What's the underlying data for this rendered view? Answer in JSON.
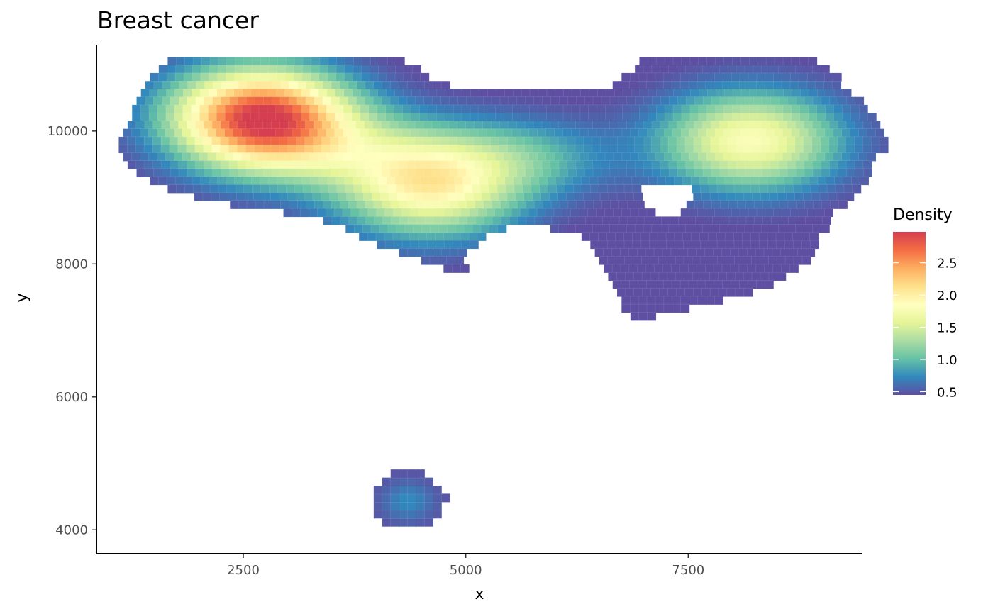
{
  "chart_data": {
    "type": "heatmap",
    "title": "Breast cancer",
    "xlabel": "x",
    "ylabel": "y",
    "xlim": [
      850,
      9450
    ],
    "ylim": [
      3640,
      11300
    ],
    "x_ticks": [
      2500,
      5000,
      7500
    ],
    "x_tick_labels": [
      "2500",
      "5000",
      "7500"
    ],
    "y_ticks": [
      4000,
      6000,
      8000,
      10000
    ],
    "y_tick_labels": [
      "4000",
      "6000",
      "8000",
      "10000"
    ],
    "grid": false,
    "legend": {
      "title": "Density",
      "placement": "right",
      "min": 0.45,
      "max": 2.98,
      "ticks": [
        0.5,
        1.0,
        1.5,
        2.0,
        2.5
      ],
      "tick_labels": [
        "0.5",
        "1.0",
        "1.5",
        "2.0",
        "2.5"
      ],
      "palette": [
        "#5E4FA2",
        "#3288BD",
        "#66C2A5",
        "#ABDDA4",
        "#E6F598",
        "#FFFFBF",
        "#FEE08B",
        "#FDAE61",
        "#F46D43",
        "#D53E4F"
      ]
    },
    "grid_cell": {
      "dx": 95,
      "dy": 122
    },
    "density_peaks": [
      {
        "x": 2700,
        "y": 10200,
        "density": 2.95
      },
      {
        "x": 4600,
        "y": 9150,
        "density": 1.85
      },
      {
        "x": 8200,
        "y": 9850,
        "density": 1.8
      },
      {
        "x": 4350,
        "y": 4450,
        "density": 0.7
      }
    ],
    "shape": {
      "upper_region": {
        "row_spans": [
          {
            "y": 11050,
            "spans": [
              [
                1700,
                4300
              ],
              [
                7000,
                8950
              ]
            ]
          },
          {
            "y": 10930,
            "spans": [
              [
                1600,
                4450
              ],
              [
                6950,
                9100
              ]
            ]
          },
          {
            "y": 10810,
            "spans": [
              [
                1500,
                4550
              ],
              [
                6800,
                9200
              ]
            ]
          },
          {
            "y": 10690,
            "spans": [
              [
                1450,
                4800
              ],
              [
                6700,
                9250
              ]
            ]
          },
          {
            "y": 10570,
            "spans": [
              [
                1400,
                9350
              ]
            ]
          },
          {
            "y": 10450,
            "spans": [
              [
                1350,
                9450
              ]
            ]
          },
          {
            "y": 10330,
            "spans": [
              [
                1300,
                9500
              ]
            ]
          },
          {
            "y": 10210,
            "spans": [
              [
                1300,
                9600
              ]
            ]
          },
          {
            "y": 10090,
            "spans": [
              [
                1250,
                9650
              ]
            ]
          },
          {
            "y": 9970,
            "spans": [
              [
                1200,
                9700
              ]
            ]
          },
          {
            "y": 9850,
            "spans": [
              [
                1150,
                9700
              ]
            ]
          },
          {
            "y": 9730,
            "spans": [
              [
                1150,
                9700
              ]
            ]
          },
          {
            "y": 9610,
            "spans": [
              [
                1200,
                9650
              ]
            ]
          },
          {
            "y": 9490,
            "spans": [
              [
                1250,
                9600
              ]
            ]
          },
          {
            "y": 9370,
            "spans": [
              [
                1350,
                9550
              ]
            ]
          },
          {
            "y": 9250,
            "spans": [
              [
                1500,
                9500
              ]
            ]
          },
          {
            "y": 9130,
            "spans": [
              [
                1700,
                9450
              ]
            ]
          },
          {
            "y": 9010,
            "spans": [
              [
                2000,
                9350
              ]
            ]
          },
          {
            "y": 8890,
            "spans": [
              [
                2400,
                9250
              ]
            ]
          },
          {
            "y": 8770,
            "spans": [
              [
                3000,
                9150
              ]
            ]
          },
          {
            "y": 8650,
            "spans": [
              [
                3450,
                9100
              ]
            ]
          },
          {
            "y": 8530,
            "spans": [
              [
                3700,
                5450
              ],
              [
                6000,
                9050
              ]
            ]
          },
          {
            "y": 8410,
            "spans": [
              [
                3850,
                5250
              ],
              [
                6350,
                9000
              ]
            ]
          },
          {
            "y": 8290,
            "spans": [
              [
                4050,
                5100
              ],
              [
                6450,
                8950
              ]
            ]
          },
          {
            "y": 8170,
            "spans": [
              [
                4300,
                5050
              ],
              [
                6500,
                8900
              ]
            ]
          },
          {
            "y": 8050,
            "spans": [
              [
                4550,
                5000
              ],
              [
                6550,
                8850
              ]
            ]
          },
          {
            "y": 7930,
            "spans": [
              [
                4800,
                5000
              ],
              [
                6600,
                8750
              ]
            ]
          },
          {
            "y": 7810,
            "spans": [
              [
                6650,
                8600
              ]
            ]
          },
          {
            "y": 7690,
            "spans": [
              [
                6700,
                8450
              ]
            ]
          },
          {
            "y": 7570,
            "spans": [
              [
                6750,
                8200
              ]
            ]
          },
          {
            "y": 7450,
            "spans": [
              [
                6800,
                7850
              ]
            ]
          },
          {
            "y": 7330,
            "spans": [
              [
                6800,
                7500
              ]
            ]
          },
          {
            "y": 7210,
            "spans": [
              [
                6900,
                7100
              ]
            ]
          }
        ],
        "hole": {
          "x": 7250,
          "y": 9000,
          "rx": 310,
          "ry": 250
        }
      },
      "lower_blob": {
        "x": 4350,
        "y": 4430,
        "rx": 430,
        "ry": 440
      }
    }
  }
}
